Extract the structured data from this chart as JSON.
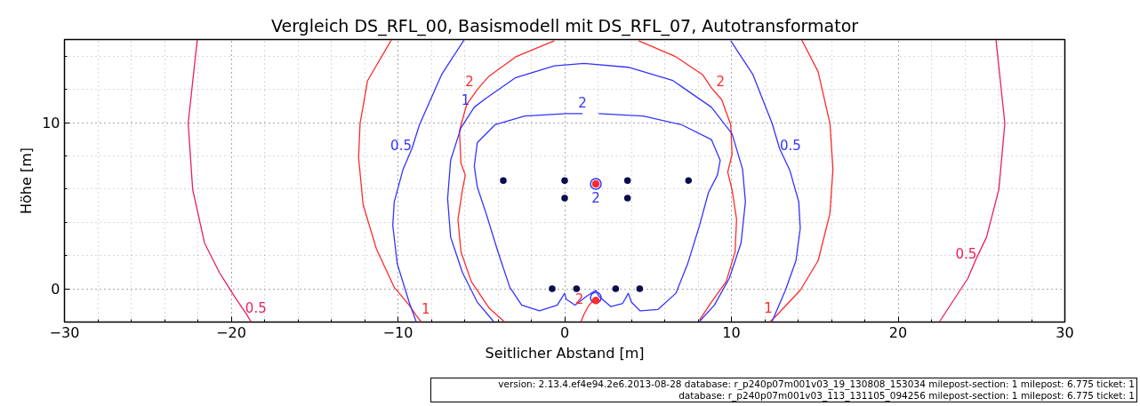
{
  "chart_data": {
    "type": "line",
    "title": "Vergleich DS_RFL_00, Basismodell mit DS_RFL_07, Autotransformator",
    "xlabel": "Seitlicher Abstand [m]",
    "ylabel": "Höhe [m]",
    "xlim": [
      -30,
      30
    ],
    "ylim": [
      -2,
      15
    ],
    "xticks": [
      {
        "value": -30,
        "label": "−30"
      },
      {
        "value": -28,
        "label": null
      },
      {
        "value": -26,
        "label": null
      },
      {
        "value": -24,
        "label": null
      },
      {
        "value": -22,
        "label": null
      },
      {
        "value": -20,
        "label": "−20"
      },
      {
        "value": -18,
        "label": null
      },
      {
        "value": -16,
        "label": null
      },
      {
        "value": -14,
        "label": null
      },
      {
        "value": -12,
        "label": null
      },
      {
        "value": -10,
        "label": "−10"
      },
      {
        "value": -8,
        "label": null
      },
      {
        "value": -6,
        "label": null
      },
      {
        "value": -4,
        "label": null
      },
      {
        "value": -2,
        "label": null
      },
      0,
      {
        "value": 2,
        "label": null
      },
      {
        "value": 4,
        "label": null
      },
      {
        "value": 6,
        "label": null
      },
      {
        "value": 8,
        "label": null
      },
      10,
      {
        "value": 12,
        "label": null
      },
      {
        "value": 14,
        "label": null
      },
      {
        "value": 16,
        "label": null
      },
      {
        "value": 18,
        "label": null
      },
      20,
      {
        "value": 22,
        "label": null
      },
      {
        "value": 24,
        "label": null
      },
      {
        "value": 26,
        "label": null
      },
      {
        "value": 28,
        "label": null
      },
      30
    ],
    "yticks": [
      {
        "value": -2,
        "label": null
      },
      0,
      {
        "value": 2,
        "label": null
      },
      {
        "value": 4,
        "label": null
      },
      {
        "value": 6,
        "label": null
      },
      {
        "value": 8,
        "label": null
      },
      10,
      {
        "value": 12,
        "label": null
      },
      {
        "value": 14,
        "label": null
      }
    ],
    "grid": true,
    "line_style": "solid",
    "series": [
      {
        "color": "#e8205a",
        "x": [
          -22.04,
          -22.58,
          -22.31,
          -21.6,
          -20.71,
          -19.79,
          -19.1,
          -18.8
        ],
        "values": [
          14.97,
          9.96,
          5.97,
          2.76,
          0.98,
          -0.48,
          -1.5,
          -2
        ]
      },
      {
        "color": "#e8205a",
        "x": [
          25.87,
          26.4,
          26.04,
          25.3,
          24.71,
          24.18,
          22.49
        ],
        "values": [
          14.97,
          9.96,
          5.97,
          3.1,
          1.87,
          0.62,
          -1.96
        ]
      },
      {
        "color": "#ff2a2a",
        "x": [
          -10.4,
          -11.82,
          -12.27,
          -12.36,
          -12.09,
          -11.29,
          -10.22,
          -9.33,
          -8.9,
          -8.6
        ],
        "values": [
          14.97,
          12.53,
          9.96,
          7.91,
          5.07,
          2.4,
          0.09,
          -0.98,
          -1.6,
          -2
        ]
      },
      {
        "color": "#ff2a2a",
        "x": [
          14.22,
          15.2,
          15.91,
          16.09,
          15.91,
          15.2,
          14.13,
          12.71,
          12.3
        ],
        "values": [
          14.97,
          13.07,
          9.96,
          7.2,
          4.53,
          1.69,
          -0.09,
          -1.6,
          -2
        ]
      },
      {
        "color": "#ff2a2a",
        "x": [
          -3.64,
          -4.53,
          -5.6,
          -6.22,
          -6.4,
          -6.13,
          -5.96,
          -6.22,
          -6.31,
          -5.87,
          -5.16,
          -4.53,
          -2.93,
          -0.62
        ],
        "values": [
          -1.96,
          -1.16,
          0.44,
          2.22,
          4.18,
          5.96,
          6.84,
          7.56,
          9.51,
          11.11,
          12.09,
          12.8,
          13.96,
          14.93
        ]
      },
      {
        "color": "#ff2a2a",
        "x": [
          4.44,
          6.67,
          8.27,
          8.8,
          9.42,
          9.96,
          10.04,
          9.78,
          10.04,
          10.31,
          10.22,
          9.69,
          8.8,
          8.09
        ],
        "values": [
          14.93,
          13.96,
          12.89,
          12.09,
          11.38,
          9.87,
          8.09,
          7.02,
          5.96,
          4.18,
          2.22,
          0.44,
          -0.8,
          -1.87
        ]
      },
      {
        "color": "#ff2a2a",
        "x": [
          0.98,
          1.2,
          1.45,
          1.69
        ],
        "values": [
          -1.96,
          -1.45,
          -1.0,
          -0.75
        ]
      },
      {
        "color": "#3333ff",
        "x": [
          -6.04,
          -7.38,
          -8.71,
          -9.16,
          -9.69,
          -10.22,
          -10.31,
          -10.04,
          -9.33,
          -8.9
        ],
        "values": [
          14.97,
          12.89,
          9.87,
          8.44,
          7.2,
          5.24,
          3.82,
          1.51,
          -0.8,
          -2
        ]
      },
      {
        "color": "#3333ff",
        "x": [
          9.96,
          11.29,
          12.44,
          12.89,
          13.51,
          14.04,
          14.13,
          13.87,
          13.24,
          12.44
        ],
        "values": [
          14.93,
          12.89,
          9.96,
          8.44,
          7.11,
          5.24,
          3.64,
          1.69,
          -0.09,
          -1.96
        ]
      },
      {
        "color": "#3333ff",
        "x": [
          -4.27,
          -5.24,
          -6.13,
          -6.84,
          -7.02,
          -6.84,
          -6.22,
          -5.42,
          -4.71,
          -2.93,
          -0.62,
          1.16,
          3.82,
          6.49,
          8.8,
          10.04,
          10.67,
          10.84,
          10.58,
          9.87,
          8.98,
          8.09
        ],
        "values": [
          -1.96,
          -0.8,
          0.98,
          3.11,
          5.42,
          7.73,
          9.69,
          10.93,
          11.47,
          12.71,
          13.42,
          13.56,
          13.33,
          12.53,
          10.93,
          9.33,
          7.2,
          5.24,
          2.76,
          0.62,
          -0.98,
          -1.96
        ]
      },
      {
        "color": "#3333ff",
        "x": [
          2.04,
          4.71,
          7.02,
          8.8,
          9.33,
          9.16,
          8.62,
          8.09,
          7.38,
          6.67,
          5.6,
          4.53,
          4.0,
          3.82,
          3.47,
          2.76,
          2.04,
          1.87,
          1.33,
          0.62,
          0.09,
          0.0,
          -0.44,
          -1.51,
          -2.58,
          -3.29,
          -4.0,
          -4.71,
          -5.24,
          -5.42,
          -5.24,
          -4.18,
          -2.4,
          0.09,
          1.07
        ],
        "values": [
          10.54,
          10.4,
          9.87,
          8.98,
          7.73,
          6.84,
          5.78,
          3.82,
          1.51,
          -0.27,
          -1.24,
          -1.33,
          -0.8,
          -0.27,
          -0.89,
          -1.07,
          -0.44,
          -0.09,
          -0.44,
          -0.98,
          -0.62,
          -0.27,
          -0.98,
          -1.33,
          -0.98,
          0.09,
          2.22,
          4.53,
          6.13,
          7.38,
          8.8,
          9.87,
          10.4,
          10.54,
          10.54
        ]
      },
      {
        "type": "scatter",
        "marker": "circle",
        "color": "#3333ff",
        "x": [
          1.87,
          1.87
        ],
        "values": [
          6.31,
          -0.53
        ]
      },
      {
        "type": "scatter",
        "marker": "circle",
        "color": "#ff2a2a",
        "x": [
          1.87,
          1.87
        ],
        "values": [
          6.31,
          -0.71
        ]
      },
      {
        "type": "scatter",
        "marker": "circle",
        "color": "#0a0a50",
        "x": [
          -3.68,
          0,
          3.77,
          7.43,
          0,
          3.77,
          -0.75,
          0.71,
          3.06,
          4.5
        ],
        "values": [
          6.52,
          6.52,
          6.52,
          6.52,
          5.46,
          5.46,
          0,
          0,
          0,
          0
        ]
      }
    ],
    "annotations": [
      {
        "text": "0.5",
        "x": -19.1,
        "y": -1.5
      },
      {
        "text": "0.5",
        "x": 24.71,
        "y": 1.87
      },
      {
        "text": "1",
        "x": -8.9,
        "y": -1.6
      },
      {
        "text": "1",
        "x": 12.71,
        "y": -1.6
      },
      {
        "text": "2",
        "x": -5.16,
        "y": 12.09
      },
      {
        "text": "2",
        "x": 8.8,
        "y": 12.09
      },
      {
        "text": "2",
        "x": 1.45,
        "y": -1.0
      },
      {
        "text": "0.5",
        "x": -9.16,
        "y": 8.44
      },
      {
        "text": "0.5",
        "x": 12.89,
        "y": 8.44
      },
      {
        "text": "1",
        "x": -5.42,
        "y": 10.93
      },
      {
        "text": "2",
        "x": 1.07,
        "y": 10.54
      },
      {
        "text": "2",
        "x": 1.87,
        "y": 6.31
      },
      "version: 2.13.4.ef4e94.2e6.2013-08-28 database: r_p240p07m001v03_19_130808_153034 milepost-section: 1 milepost: 6.775 ticket: 1",
      "database: r_p240p07m001v03_113_131105_094256 milepost-section: 1 milepost: 6.775 ticket: 1"
    ]
  }
}
